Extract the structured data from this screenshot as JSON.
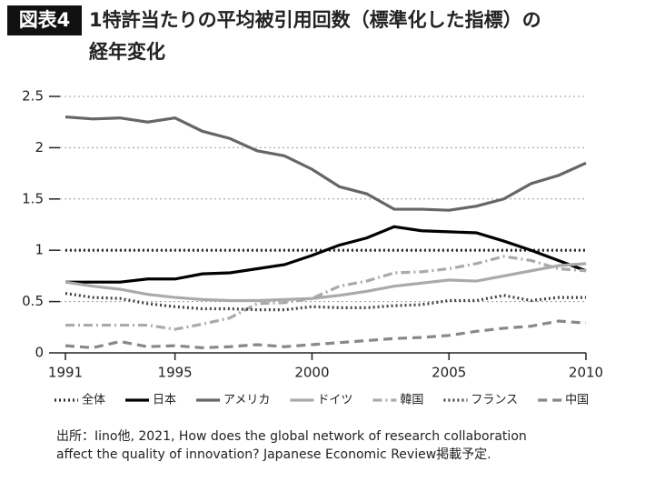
{
  "chart_data": {
    "type": "line",
    "badge": "図表4",
    "title": [
      "1特許当たりの平均被引用回数（標準化した指標）の",
      "経年変化"
    ],
    "x": [
      1991,
      1992,
      1993,
      1994,
      1995,
      1996,
      1997,
      1998,
      1999,
      2000,
      2001,
      2002,
      2003,
      2004,
      2005,
      2006,
      2007,
      2008,
      2009,
      2010
    ],
    "xlim": [
      1991,
      2010
    ],
    "xticks": [
      1991,
      1995,
      2000,
      2005,
      2010
    ],
    "ylim": [
      0,
      2.5
    ],
    "yticks": [
      0,
      0.5,
      1,
      1.5,
      2,
      2.5
    ],
    "grid": true,
    "series": [
      {
        "name": "全体",
        "color": "#333333",
        "dash": "dotted",
        "values": [
          1,
          1,
          1,
          1,
          1,
          1,
          1,
          1,
          1,
          1,
          1,
          1,
          1,
          1,
          1,
          1,
          1,
          1,
          1,
          1
        ]
      },
      {
        "name": "日本",
        "color": "#000000",
        "dash": "solid",
        "values": [
          0.69,
          0.69,
          0.69,
          0.72,
          0.72,
          0.77,
          0.78,
          0.82,
          0.86,
          0.95,
          1.05,
          1.12,
          1.23,
          1.19,
          1.18,
          1.17,
          1.09,
          1.0,
          0.9,
          0.8
        ]
      },
      {
        "name": "アメリカ",
        "color": "#666666",
        "dash": "solid",
        "values": [
          2.3,
          2.28,
          2.29,
          2.25,
          2.29,
          2.16,
          2.09,
          1.97,
          1.92,
          1.79,
          1.62,
          1.55,
          1.4,
          1.4,
          1.39,
          1.43,
          1.5,
          1.65,
          1.73,
          1.85
        ]
      },
      {
        "name": "ドイツ",
        "color": "#aaaaaa",
        "dash": "solid",
        "values": [
          0.69,
          0.65,
          0.62,
          0.57,
          0.54,
          0.52,
          0.51,
          0.51,
          0.52,
          0.53,
          0.56,
          0.6,
          0.65,
          0.68,
          0.71,
          0.7,
          0.75,
          0.8,
          0.85,
          0.87
        ]
      },
      {
        "name": "韓国",
        "color": "#aaaaaa",
        "dash": "dashdot",
        "values": [
          0.27,
          0.27,
          0.27,
          0.27,
          0.23,
          0.28,
          0.34,
          0.48,
          0.49,
          0.53,
          0.65,
          0.7,
          0.78,
          0.79,
          0.82,
          0.87,
          0.94,
          0.9,
          0.82,
          0.8
        ]
      },
      {
        "name": "フランス",
        "color": "#444444",
        "dash": "dotted",
        "values": [
          0.58,
          0.54,
          0.53,
          0.48,
          0.45,
          0.43,
          0.43,
          0.42,
          0.42,
          0.45,
          0.44,
          0.44,
          0.46,
          0.47,
          0.51,
          0.51,
          0.56,
          0.51,
          0.54,
          0.54
        ]
      },
      {
        "name": "中国",
        "color": "#888888",
        "dash": "dashed",
        "values": [
          0.07,
          0.05,
          0.11,
          0.06,
          0.07,
          0.05,
          0.06,
          0.08,
          0.06,
          0.08,
          0.1,
          0.12,
          0.14,
          0.15,
          0.17,
          0.21,
          0.24,
          0.26,
          0.31,
          0.29
        ]
      }
    ],
    "source": [
      "出所：Iino他, 2021, How does the global network of research collaboration",
      "affect the quality of innovation? Japanese Economic Review掲載予定."
    ]
  }
}
